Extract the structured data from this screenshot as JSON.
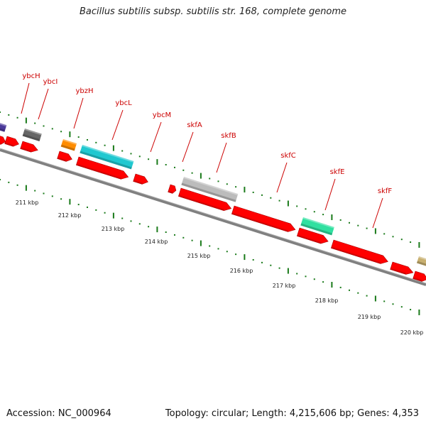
{
  "title": "Bacillus subtilis subsp. subtilis str. 168, complete genome",
  "footer": {
    "accession": "Accession: NC_000964",
    "summary": "Topology: circular; Length: 4,215,606 bp; Genes: 4,353"
  },
  "colors": {
    "gene_label": "#cc0000",
    "cds": "#ff0000",
    "backbone": "#808080",
    "tick": "#1a7a1a",
    "feature_purple": "#4b3a9a",
    "feature_darkgray": "#666666",
    "feature_orange": "#ff8c00",
    "feature_cyan": "#20c8d0",
    "feature_lightgray": "#bcbcbc",
    "feature_mint": "#30e0a0",
    "feature_tan": "#c8b070"
  },
  "gene_labels": [
    "ybcH",
    "ybcI",
    "ybzH",
    "ybcL",
    "ybcM",
    "skfA",
    "skfB",
    "skfC",
    "skfE",
    "skfF"
  ],
  "scale_labels": [
    "211 kbp",
    "212 kbp",
    "213 kbp",
    "214 kbp",
    "215 kbp",
    "216 kbp",
    "217 kbp",
    "218 kbp",
    "219 kbp",
    "220 kbp"
  ]
}
